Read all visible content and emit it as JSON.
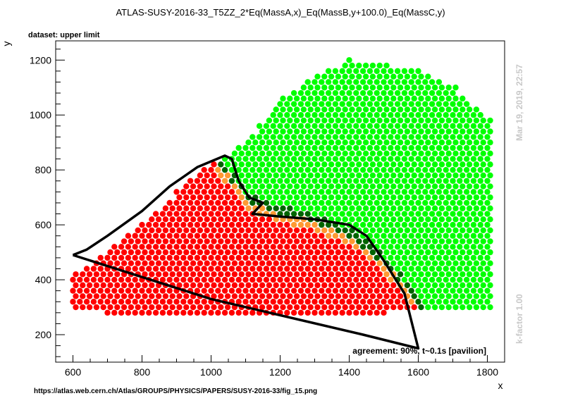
{
  "chart_data": {
    "type": "scatter",
    "title": "ATLAS-SUSY-2016-33_T5ZZ_2*Eq(MassA,x)_Eq(MassB,y+100.0)_Eq(MassC,y)",
    "subtitle": "dataset: upper limit",
    "xlabel": "x",
    "ylabel": "y",
    "xlim": [
      550,
      1850
    ],
    "ylim": [
      100,
      1270
    ],
    "xticks": [
      600,
      800,
      1000,
      1200,
      1400,
      1600,
      1800
    ],
    "yticks": [
      200,
      400,
      600,
      800,
      1000,
      1200
    ],
    "annotation": "agreement: 90%, t~0.1s [pavilion]",
    "side_date": "Mar 19, 2019, 22:57",
    "side_kfactor": "k-factor 1.00",
    "footer_url": "https://atlas.web.cern.ch/Atlas/GROUPS/PHYSICS/PAPERS/SUSY-2016-33/fig_15.png",
    "grid": false,
    "colors": {
      "excluded": "#ff0000",
      "allowed": "#00ff00",
      "excluded_border": "#ff9933",
      "allowed_border": "#006400",
      "contour": "#000000"
    },
    "scan": {
      "x_start": 600,
      "x_step": 20,
      "x_end": 1800,
      "y_step": 20
    },
    "regions": [
      {
        "x": 600,
        "ymin": 300,
        "ymax": 420,
        "class": "excluded"
      },
      {
        "x": 700,
        "ymin": 280,
        "ymax": 500,
        "class": "excluded"
      },
      {
        "x": 800,
        "ymin": 280,
        "ymax": 600,
        "class": "excluded"
      },
      {
        "x": 900,
        "ymin": 280,
        "ymax": 720,
        "class": "excluded"
      },
      {
        "x": 1000,
        "ymin": 280,
        "ymax": 820,
        "class": "excluded"
      },
      {
        "x": 1100,
        "ymin": 280,
        "ymax": 900,
        "class": "mixed"
      },
      {
        "x": 1200,
        "ymin": 280,
        "ymax": 1060,
        "class": "mixed"
      },
      {
        "x": 1300,
        "ymin": 280,
        "ymax": 1140,
        "class": "mixed"
      },
      {
        "x": 1400,
        "ymin": 280,
        "ymax": 1200,
        "class": "mixed"
      },
      {
        "x": 1500,
        "ymin": 280,
        "ymax": 1180,
        "class": "mixed"
      },
      {
        "x": 1600,
        "ymin": 300,
        "ymax": 1160,
        "class": "allowed"
      },
      {
        "x": 1700,
        "ymin": 300,
        "ymax": 1100,
        "class": "allowed"
      },
      {
        "x": 1800,
        "ymin": 300,
        "ymax": 980,
        "class": "allowed"
      }
    ],
    "exclusion_boundary": [
      {
        "x": 1000,
        "y": 830
      },
      {
        "x": 1050,
        "y": 770
      },
      {
        "x": 1100,
        "y": 690
      },
      {
        "x": 1150,
        "y": 660
      },
      {
        "x": 1200,
        "y": 640
      },
      {
        "x": 1300,
        "y": 610
      },
      {
        "x": 1400,
        "y": 560
      },
      {
        "x": 1450,
        "y": 510
      },
      {
        "x": 1500,
        "y": 450
      },
      {
        "x": 1550,
        "y": 380
      },
      {
        "x": 1600,
        "y": 300
      }
    ],
    "contour": [
      {
        "x": 600,
        "y": 490
      },
      {
        "x": 640,
        "y": 510
      },
      {
        "x": 700,
        "y": 560
      },
      {
        "x": 800,
        "y": 650
      },
      {
        "x": 880,
        "y": 740
      },
      {
        "x": 960,
        "y": 810
      },
      {
        "x": 1040,
        "y": 852
      },
      {
        "x": 1060,
        "y": 840
      },
      {
        "x": 1080,
        "y": 760
      },
      {
        "x": 1110,
        "y": 700
      },
      {
        "x": 1150,
        "y": 680
      },
      {
        "x": 1120,
        "y": 640
      },
      {
        "x": 1200,
        "y": 630
      },
      {
        "x": 1300,
        "y": 620
      },
      {
        "x": 1400,
        "y": 600
      },
      {
        "x": 1450,
        "y": 560
      },
      {
        "x": 1500,
        "y": 470
      },
      {
        "x": 1560,
        "y": 350
      },
      {
        "x": 1600,
        "y": 150
      },
      {
        "x": 1440,
        "y": 200
      },
      {
        "x": 1000,
        "y": 330
      },
      {
        "x": 600,
        "y": 490
      }
    ]
  }
}
